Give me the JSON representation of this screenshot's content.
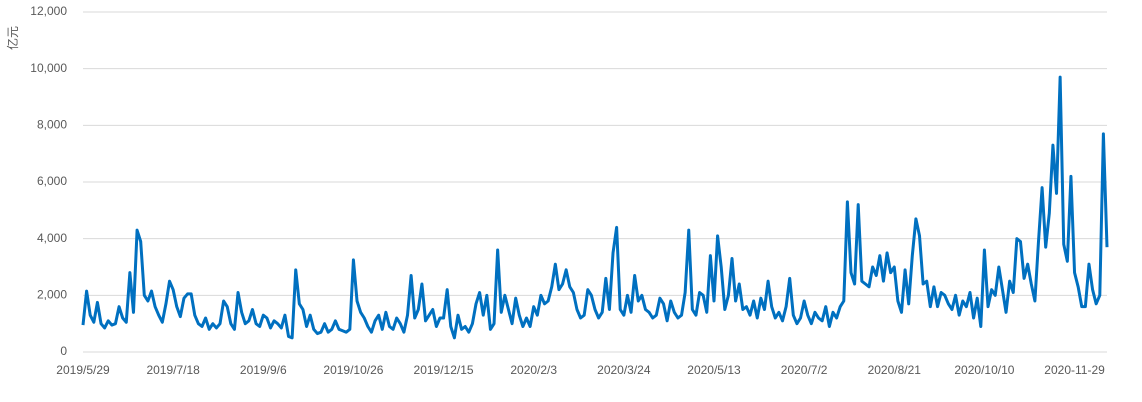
{
  "chart_data": {
    "type": "line",
    "y_label": "亿元",
    "color": "#0070c0",
    "grid": true,
    "ylim": [
      0,
      12000
    ],
    "yticks": [
      0,
      {
        "value": 2000,
        "label": "2,000"
      },
      {
        "value": 4000,
        "label": "4,000"
      },
      {
        "value": 6000,
        "label": "6,000"
      },
      {
        "value": 8000,
        "label": "8,000"
      },
      {
        "value": 10000,
        "label": "10,000"
      },
      {
        "value": 12000,
        "label": "12,000"
      }
    ],
    "categories": [
      "2019/5/29",
      null,
      null,
      null,
      null,
      null,
      null,
      null,
      null,
      null,
      null,
      null,
      null,
      null,
      null,
      null,
      null,
      null,
      null,
      null,
      null,
      null,
      null,
      null,
      null,
      "2019/7/18",
      null,
      null,
      null,
      null,
      null,
      null,
      null,
      null,
      null,
      null,
      null,
      null,
      null,
      null,
      null,
      null,
      null,
      null,
      null,
      null,
      null,
      null,
      null,
      null,
      "2019/9/6",
      null,
      null,
      null,
      null,
      null,
      null,
      null,
      null,
      null,
      null,
      null,
      null,
      null,
      null,
      null,
      null,
      null,
      null,
      null,
      null,
      null,
      null,
      null,
      null,
      "2019/10/26",
      null,
      null,
      null,
      null,
      null,
      null,
      null,
      null,
      null,
      null,
      null,
      null,
      null,
      null,
      null,
      null,
      null,
      null,
      null,
      null,
      null,
      null,
      null,
      null,
      "2019/12/15",
      null,
      null,
      null,
      null,
      null,
      null,
      null,
      null,
      null,
      null,
      null,
      null,
      null,
      null,
      null,
      null,
      null,
      null,
      null,
      null,
      null,
      null,
      null,
      null,
      "2020/2/3",
      null,
      null,
      null,
      null,
      null,
      null,
      null,
      null,
      null,
      null,
      null,
      null,
      null,
      null,
      null,
      null,
      null,
      null,
      null,
      null,
      null,
      null,
      null,
      null,
      "2020/3/24",
      null,
      null,
      null,
      null,
      null,
      null,
      null,
      null,
      null,
      null,
      null,
      null,
      null,
      null,
      null,
      null,
      null,
      null,
      null,
      null,
      null,
      null,
      null,
      null,
      "2020/5/13",
      null,
      null,
      null,
      null,
      null,
      null,
      null,
      null,
      null,
      null,
      null,
      null,
      null,
      null,
      null,
      null,
      null,
      null,
      null,
      null,
      null,
      null,
      null,
      null,
      "2020/7/2",
      null,
      null,
      null,
      null,
      null,
      null,
      null,
      null,
      null,
      null,
      null,
      null,
      null,
      null,
      null,
      null,
      null,
      null,
      null,
      null,
      null,
      null,
      null,
      null,
      "2020/8/21",
      null,
      null,
      null,
      null,
      null,
      null,
      null,
      null,
      null,
      null,
      null,
      null,
      null,
      null,
      null,
      null,
      null,
      null,
      null,
      null,
      null,
      null,
      null,
      null,
      "2020/10/10",
      null,
      null,
      null,
      null,
      null,
      null,
      null,
      null,
      null,
      null,
      null,
      null,
      null,
      null,
      null,
      null,
      null,
      null,
      null,
      null,
      null,
      null,
      null,
      null,
      "2020-11-29",
      null,
      null,
      null,
      null,
      null,
      null,
      null,
      null,
      null
    ],
    "values": [
      950,
      2150,
      1300,
      1050,
      1750,
      1000,
      850,
      1100,
      950,
      1000,
      1600,
      1200,
      1050,
      2800,
      1400,
      4300,
      3900,
      2000,
      1800,
      2150,
      1600,
      1300,
      1050,
      1700,
      2500,
      2200,
      1600,
      1250,
      1900,
      2050,
      2050,
      1300,
      1000,
      900,
      1200,
      800,
      1000,
      850,
      1000,
      1800,
      1600,
      1000,
      800,
      2100,
      1400,
      1000,
      1100,
      1500,
      1000,
      900,
      1300,
      1200,
      850,
      1100,
      1000,
      850,
      1300,
      550,
      500,
      2900,
      1700,
      1500,
      900,
      1300,
      800,
      650,
      700,
      1000,
      700,
      800,
      1100,
      800,
      750,
      700,
      800,
      3250,
      1800,
      1400,
      1200,
      900,
      700,
      1100,
      1300,
      800,
      1400,
      900,
      800,
      1200,
      1000,
      700,
      1300,
      2700,
      1200,
      1500,
      2400,
      1100,
      1300,
      1500,
      900,
      1200,
      1200,
      2200,
      900,
      500,
      1300,
      800,
      900,
      700,
      1000,
      1700,
      2100,
      1300,
      2000,
      800,
      1000,
      3600,
      1400,
      2000,
      1500,
      1000,
      1900,
      1300,
      900,
      1200,
      900,
      1600,
      1300,
      2000,
      1700,
      1800,
      2300,
      3100,
      2200,
      2400,
      2900,
      2300,
      2100,
      1500,
      1200,
      1300,
      2200,
      2000,
      1500,
      1200,
      1400,
      2600,
      1500,
      3500,
      4400,
      1500,
      1300,
      2000,
      1400,
      2700,
      1800,
      2000,
      1500,
      1400,
      1200,
      1300,
      1900,
      1700,
      1100,
      1800,
      1400,
      1200,
      1300,
      2100,
      4300,
      1500,
      1300,
      2100,
      2000,
      1400,
      3400,
      1800,
      4100,
      3000,
      1500,
      2000,
      3300,
      1800,
      2400,
      1500,
      1600,
      1300,
      1800,
      1200,
      1900,
      1500,
      2500,
      1600,
      1200,
      1400,
      1100,
      1600,
      2600,
      1300,
      1000,
      1200,
      1800,
      1300,
      1000,
      1400,
      1200,
      1100,
      1600,
      900,
      1400,
      1200,
      1600,
      1800,
      5300,
      2800,
      2400,
      5200,
      2500,
      2400,
      2300,
      3000,
      2700,
      3400,
      2500,
      3500,
      2800,
      3000,
      1800,
      1400,
      2900,
      1700,
      3400,
      4700,
      4100,
      2400,
      2500,
      1600,
      2300,
      1600,
      2100,
      2000,
      1700,
      1500,
      2000,
      1300,
      1800,
      1600,
      2100,
      1200,
      1900,
      900,
      3600,
      1600,
      2200,
      2000,
      3000,
      2200,
      1400,
      2500,
      2100,
      4000,
      3900,
      2600,
      3100,
      2400,
      1800,
      3900,
      5800,
      3700,
      4900,
      7300,
      5600,
      9700,
      3800,
      3200,
      6200,
      2800,
      2300,
      1600,
      1600,
      3100,
      2200,
      1700,
      2000,
      7700,
      3700
    ]
  }
}
